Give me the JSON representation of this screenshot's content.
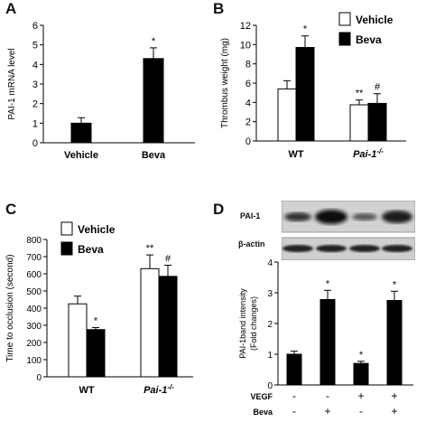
{
  "panel_letters": [
    "A",
    "B",
    "C",
    "D"
  ],
  "legend": {
    "vehicle": "Vehicle",
    "beva": "Beva"
  },
  "blot": {
    "labels": [
      "PAI-1",
      "β-actin"
    ]
  },
  "chart_data": [
    {
      "panel": "A",
      "type": "bar",
      "categories": [
        "Vehicle",
        "Beva"
      ],
      "values": [
        1.0,
        4.3
      ],
      "errors": [
        0.28,
        0.55
      ],
      "colors": [
        "#000000",
        "#000000"
      ],
      "stars": [
        "",
        "*"
      ],
      "ylabel": "PAI-1 mRNA level",
      "xlabel": "",
      "ylim": [
        0,
        6
      ],
      "yticks": [
        0,
        1,
        2,
        3,
        4,
        5,
        6
      ]
    },
    {
      "panel": "B",
      "type": "bar",
      "categories": [
        "WT",
        "Pai-1-/-"
      ],
      "category_display": [
        {
          "base": "WT",
          "sup": "",
          "italic": false
        },
        {
          "base": "Pai-1",
          "sup": "-/-",
          "italic": true
        }
      ],
      "series": [
        {
          "name": "Vehicle",
          "color": "#ffffff",
          "values": [
            5.4,
            3.75
          ],
          "errors": [
            0.85,
            0.5
          ],
          "stars": [
            "",
            "**"
          ]
        },
        {
          "name": "Beva",
          "color": "#000000",
          "values": [
            9.7,
            3.9
          ],
          "errors": [
            1.2,
            1.0
          ],
          "stars": [
            "*",
            "#"
          ]
        }
      ],
      "ylabel": "Thrombus weight (mg)",
      "xlabel": "",
      "ylim": [
        0,
        12
      ],
      "yticks": [
        0,
        2,
        4,
        6,
        8,
        10,
        12
      ],
      "legend_position": "top-right"
    },
    {
      "panel": "C",
      "type": "bar",
      "categories": [
        "WT",
        "Pai-1-/-"
      ],
      "category_display": [
        {
          "base": "WT",
          "sup": "",
          "italic": false
        },
        {
          "base": "Pai-1",
          "sup": "-/-",
          "italic": true
        }
      ],
      "series": [
        {
          "name": "Vehicle",
          "color": "#ffffff",
          "values": [
            425,
            630
          ],
          "errors": [
            45,
            80
          ],
          "stars": [
            "",
            "**"
          ]
        },
        {
          "name": "Beva",
          "color": "#000000",
          "values": [
            275,
            585
          ],
          "errors": [
            12,
            65
          ],
          "stars": [
            "*",
            "#"
          ]
        }
      ],
      "ylabel": "Time to occlusion (second)",
      "xlabel": "",
      "ylim": [
        0,
        800
      ],
      "yticks": [
        0,
        100,
        200,
        300,
        400,
        500,
        600,
        700,
        800
      ],
      "legend_position": "top-left"
    },
    {
      "panel": "D",
      "type": "bar",
      "categories": [
        "1",
        "2",
        "3",
        "4"
      ],
      "values": [
        1.0,
        2.78,
        0.7,
        2.75
      ],
      "errors": [
        0.1,
        0.3,
        0.07,
        0.3
      ],
      "colors": [
        "#000000",
        "#000000",
        "#000000",
        "#000000"
      ],
      "stars": [
        "",
        "*",
        "*",
        "*"
      ],
      "ylabel": "PAI-1band intensity (Fold changes)",
      "ylabel_lines": [
        "PAI-1band intensity",
        "(Fold changes)"
      ],
      "xlabel": "",
      "ylim": [
        0,
        4
      ],
      "yticks": [
        0,
        1,
        2,
        3,
        4
      ],
      "treatments": [
        {
          "name": "VEGF",
          "marks": [
            "-",
            "-",
            "+",
            "+"
          ]
        },
        {
          "name": "Beva",
          "marks": [
            "-",
            "+",
            "-",
            "+"
          ]
        }
      ]
    }
  ]
}
